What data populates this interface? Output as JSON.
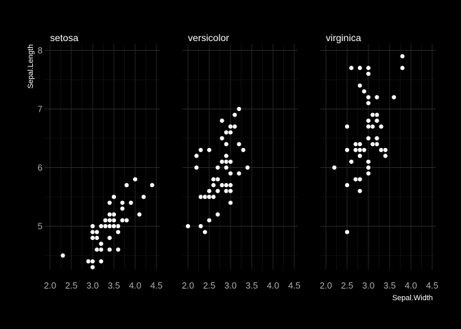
{
  "chart_data": {
    "type": "scatter",
    "xlabel": "Sepal.Width",
    "ylabel": "Sepal.Length",
    "xlim": [
      2.0,
      4.5
    ],
    "ylim": [
      4.2,
      8.1
    ],
    "x_ticks": [
      "2.0",
      "2.5",
      "3.0",
      "3.5",
      "4.0",
      "4.5"
    ],
    "y_ticks": [
      "5",
      "6",
      "7",
      "8"
    ],
    "theme": "dark",
    "grid": true,
    "legend": "none",
    "colors": {
      "background": "#000000",
      "point": "#ffffff",
      "text": "#ffffff",
      "tick_text": "#b0b0b0"
    },
    "facets": [
      {
        "name": "setosa",
        "points": [
          [
            3.5,
            5.1
          ],
          [
            3.0,
            4.9
          ],
          [
            3.2,
            4.7
          ],
          [
            3.1,
            4.6
          ],
          [
            3.6,
            5.0
          ],
          [
            3.9,
            5.4
          ],
          [
            3.4,
            4.6
          ],
          [
            3.4,
            5.0
          ],
          [
            2.9,
            4.4
          ],
          [
            3.1,
            4.9
          ],
          [
            3.7,
            5.4
          ],
          [
            3.4,
            4.8
          ],
          [
            3.0,
            4.8
          ],
          [
            3.0,
            4.3
          ],
          [
            4.0,
            5.8
          ],
          [
            4.4,
            5.7
          ],
          [
            3.9,
            5.4
          ],
          [
            3.5,
            5.1
          ],
          [
            3.8,
            5.7
          ],
          [
            3.8,
            5.1
          ],
          [
            3.4,
            5.4
          ],
          [
            3.7,
            5.1
          ],
          [
            3.6,
            4.6
          ],
          [
            3.3,
            5.1
          ],
          [
            3.4,
            4.8
          ],
          [
            3.0,
            5.0
          ],
          [
            3.4,
            5.0
          ],
          [
            3.5,
            5.2
          ],
          [
            3.4,
            5.2
          ],
          [
            3.2,
            4.7
          ],
          [
            3.1,
            4.8
          ],
          [
            3.4,
            5.4
          ],
          [
            4.1,
            5.2
          ],
          [
            4.2,
            5.5
          ],
          [
            3.1,
            4.9
          ],
          [
            3.2,
            5.0
          ],
          [
            3.5,
            5.5
          ],
          [
            3.6,
            4.9
          ],
          [
            3.0,
            4.4
          ],
          [
            3.4,
            5.1
          ],
          [
            3.5,
            5.0
          ],
          [
            2.3,
            4.5
          ],
          [
            3.2,
            4.4
          ],
          [
            3.5,
            5.0
          ],
          [
            3.8,
            5.1
          ],
          [
            3.0,
            4.8
          ],
          [
            3.8,
            5.1
          ],
          [
            3.2,
            4.6
          ],
          [
            3.7,
            5.3
          ],
          [
            3.3,
            5.0
          ]
        ]
      },
      {
        "name": "versicolor",
        "points": [
          [
            3.2,
            7.0
          ],
          [
            3.2,
            6.4
          ],
          [
            3.1,
            6.9
          ],
          [
            2.3,
            5.5
          ],
          [
            2.8,
            6.5
          ],
          [
            2.8,
            5.7
          ],
          [
            3.3,
            6.3
          ],
          [
            2.4,
            4.9
          ],
          [
            2.9,
            6.6
          ],
          [
            2.7,
            5.2
          ],
          [
            2.0,
            5.0
          ],
          [
            3.0,
            5.9
          ],
          [
            2.2,
            6.0
          ],
          [
            2.9,
            6.1
          ],
          [
            2.9,
            5.6
          ],
          [
            3.1,
            6.7
          ],
          [
            3.0,
            5.6
          ],
          [
            2.7,
            5.8
          ],
          [
            2.2,
            6.2
          ],
          [
            2.5,
            5.6
          ],
          [
            3.2,
            5.9
          ],
          [
            2.8,
            6.1
          ],
          [
            2.5,
            6.3
          ],
          [
            2.8,
            6.1
          ],
          [
            2.9,
            6.4
          ],
          [
            3.0,
            6.6
          ],
          [
            2.8,
            6.8
          ],
          [
            3.0,
            6.7
          ],
          [
            2.9,
            6.0
          ],
          [
            2.6,
            5.7
          ],
          [
            2.4,
            5.5
          ],
          [
            2.4,
            5.5
          ],
          [
            2.7,
            5.8
          ],
          [
            2.7,
            6.0
          ],
          [
            3.0,
            5.4
          ],
          [
            3.4,
            6.0
          ],
          [
            3.1,
            6.7
          ],
          [
            2.3,
            6.3
          ],
          [
            3.0,
            5.6
          ],
          [
            2.5,
            5.5
          ],
          [
            2.6,
            5.5
          ],
          [
            3.0,
            6.1
          ],
          [
            2.6,
            5.8
          ],
          [
            2.3,
            5.0
          ],
          [
            2.7,
            5.6
          ],
          [
            3.0,
            5.7
          ],
          [
            2.9,
            5.7
          ],
          [
            2.9,
            6.2
          ],
          [
            2.5,
            5.1
          ],
          [
            2.8,
            5.7
          ]
        ]
      },
      {
        "name": "virginica",
        "points": [
          [
            3.3,
            6.3
          ],
          [
            2.7,
            5.8
          ],
          [
            3.0,
            7.1
          ],
          [
            2.9,
            6.3
          ],
          [
            3.0,
            6.5
          ],
          [
            3.0,
            7.6
          ],
          [
            2.5,
            4.9
          ],
          [
            2.9,
            7.3
          ],
          [
            2.5,
            6.7
          ],
          [
            3.6,
            7.2
          ],
          [
            3.2,
            6.5
          ],
          [
            2.7,
            6.4
          ],
          [
            3.0,
            6.8
          ],
          [
            2.5,
            5.7
          ],
          [
            2.8,
            5.8
          ],
          [
            3.2,
            6.4
          ],
          [
            3.0,
            6.5
          ],
          [
            3.8,
            7.7
          ],
          [
            2.6,
            7.7
          ],
          [
            2.2,
            6.0
          ],
          [
            3.2,
            6.9
          ],
          [
            2.8,
            5.6
          ],
          [
            2.8,
            7.7
          ],
          [
            2.7,
            6.3
          ],
          [
            3.3,
            6.7
          ],
          [
            3.2,
            7.2
          ],
          [
            2.8,
            6.2
          ],
          [
            3.0,
            6.1
          ],
          [
            2.8,
            6.4
          ],
          [
            3.0,
            7.2
          ],
          [
            2.8,
            7.4
          ],
          [
            3.8,
            7.9
          ],
          [
            2.8,
            6.4
          ],
          [
            2.8,
            6.3
          ],
          [
            2.6,
            6.1
          ],
          [
            3.0,
            7.7
          ],
          [
            3.4,
            6.3
          ],
          [
            3.1,
            6.4
          ],
          [
            3.0,
            6.0
          ],
          [
            3.1,
            6.9
          ],
          [
            3.1,
            6.7
          ],
          [
            3.1,
            6.9
          ],
          [
            2.7,
            5.8
          ],
          [
            3.2,
            6.8
          ],
          [
            3.3,
            6.7
          ],
          [
            3.0,
            6.7
          ],
          [
            2.5,
            6.3
          ],
          [
            3.0,
            6.5
          ],
          [
            3.4,
            6.2
          ],
          [
            3.0,
            5.9
          ]
        ]
      }
    ]
  }
}
